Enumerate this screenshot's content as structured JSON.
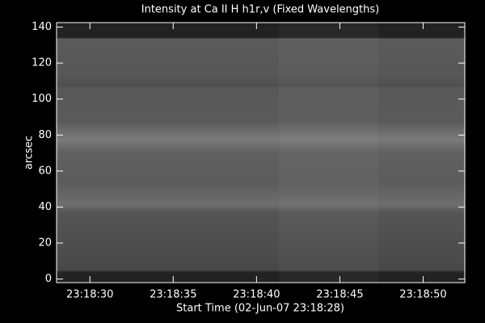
{
  "chart_data": {
    "type": "image",
    "title": "Intensity at Ca II H h1r,v (Fixed Wavelengths)",
    "x_label": "Start Time (02-Jun-07 23:18:28)",
    "y_label": "arcsec",
    "xlim": [
      "23:18:28",
      "23:18:52.5"
    ],
    "xticks": [
      "23:18:30",
      "23:18:35",
      "23:18:40",
      "23:18:45",
      "23:18:50"
    ],
    "ylim": [
      -2,
      142.5
    ],
    "yticks": [
      0,
      20,
      40,
      60,
      80,
      100,
      120,
      140
    ],
    "colormap": "gray"
  }
}
